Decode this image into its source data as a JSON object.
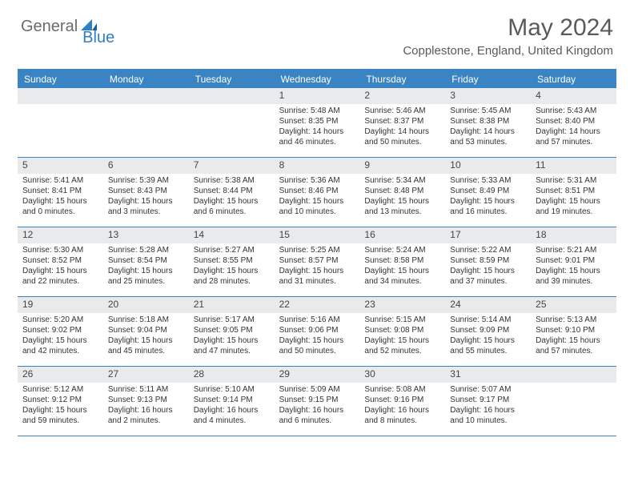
{
  "brand": {
    "text_gray": "General",
    "text_blue": "Blue"
  },
  "title": "May 2024",
  "location": "Copplestone, England, United Kingdom",
  "colors": {
    "header_bg": "#3b84c4",
    "band_bg": "#e9eaec",
    "text": "#333333",
    "brand_gray": "#6b6b6b",
    "brand_blue": "#2f7fc2",
    "page_bg": "#ffffff"
  },
  "dow": [
    "Sunday",
    "Monday",
    "Tuesday",
    "Wednesday",
    "Thursday",
    "Friday",
    "Saturday"
  ],
  "weeks": [
    [
      null,
      null,
      null,
      {
        "n": "1",
        "sr": "5:48 AM",
        "ss": "8:35 PM",
        "dl": "14 hours and 46 minutes."
      },
      {
        "n": "2",
        "sr": "5:46 AM",
        "ss": "8:37 PM",
        "dl": "14 hours and 50 minutes."
      },
      {
        "n": "3",
        "sr": "5:45 AM",
        "ss": "8:38 PM",
        "dl": "14 hours and 53 minutes."
      },
      {
        "n": "4",
        "sr": "5:43 AM",
        "ss": "8:40 PM",
        "dl": "14 hours and 57 minutes."
      }
    ],
    [
      {
        "n": "5",
        "sr": "5:41 AM",
        "ss": "8:41 PM",
        "dl": "15 hours and 0 minutes."
      },
      {
        "n": "6",
        "sr": "5:39 AM",
        "ss": "8:43 PM",
        "dl": "15 hours and 3 minutes."
      },
      {
        "n": "7",
        "sr": "5:38 AM",
        "ss": "8:44 PM",
        "dl": "15 hours and 6 minutes."
      },
      {
        "n": "8",
        "sr": "5:36 AM",
        "ss": "8:46 PM",
        "dl": "15 hours and 10 minutes."
      },
      {
        "n": "9",
        "sr": "5:34 AM",
        "ss": "8:48 PM",
        "dl": "15 hours and 13 minutes."
      },
      {
        "n": "10",
        "sr": "5:33 AM",
        "ss": "8:49 PM",
        "dl": "15 hours and 16 minutes."
      },
      {
        "n": "11",
        "sr": "5:31 AM",
        "ss": "8:51 PM",
        "dl": "15 hours and 19 minutes."
      }
    ],
    [
      {
        "n": "12",
        "sr": "5:30 AM",
        "ss": "8:52 PM",
        "dl": "15 hours and 22 minutes."
      },
      {
        "n": "13",
        "sr": "5:28 AM",
        "ss": "8:54 PM",
        "dl": "15 hours and 25 minutes."
      },
      {
        "n": "14",
        "sr": "5:27 AM",
        "ss": "8:55 PM",
        "dl": "15 hours and 28 minutes."
      },
      {
        "n": "15",
        "sr": "5:25 AM",
        "ss": "8:57 PM",
        "dl": "15 hours and 31 minutes."
      },
      {
        "n": "16",
        "sr": "5:24 AM",
        "ss": "8:58 PM",
        "dl": "15 hours and 34 minutes."
      },
      {
        "n": "17",
        "sr": "5:22 AM",
        "ss": "8:59 PM",
        "dl": "15 hours and 37 minutes."
      },
      {
        "n": "18",
        "sr": "5:21 AM",
        "ss": "9:01 PM",
        "dl": "15 hours and 39 minutes."
      }
    ],
    [
      {
        "n": "19",
        "sr": "5:20 AM",
        "ss": "9:02 PM",
        "dl": "15 hours and 42 minutes."
      },
      {
        "n": "20",
        "sr": "5:18 AM",
        "ss": "9:04 PM",
        "dl": "15 hours and 45 minutes."
      },
      {
        "n": "21",
        "sr": "5:17 AM",
        "ss": "9:05 PM",
        "dl": "15 hours and 47 minutes."
      },
      {
        "n": "22",
        "sr": "5:16 AM",
        "ss": "9:06 PM",
        "dl": "15 hours and 50 minutes."
      },
      {
        "n": "23",
        "sr": "5:15 AM",
        "ss": "9:08 PM",
        "dl": "15 hours and 52 minutes."
      },
      {
        "n": "24",
        "sr": "5:14 AM",
        "ss": "9:09 PM",
        "dl": "15 hours and 55 minutes."
      },
      {
        "n": "25",
        "sr": "5:13 AM",
        "ss": "9:10 PM",
        "dl": "15 hours and 57 minutes."
      }
    ],
    [
      {
        "n": "26",
        "sr": "5:12 AM",
        "ss": "9:12 PM",
        "dl": "15 hours and 59 minutes."
      },
      {
        "n": "27",
        "sr": "5:11 AM",
        "ss": "9:13 PM",
        "dl": "16 hours and 2 minutes."
      },
      {
        "n": "28",
        "sr": "5:10 AM",
        "ss": "9:14 PM",
        "dl": "16 hours and 4 minutes."
      },
      {
        "n": "29",
        "sr": "5:09 AM",
        "ss": "9:15 PM",
        "dl": "16 hours and 6 minutes."
      },
      {
        "n": "30",
        "sr": "5:08 AM",
        "ss": "9:16 PM",
        "dl": "16 hours and 8 minutes."
      },
      {
        "n": "31",
        "sr": "5:07 AM",
        "ss": "9:17 PM",
        "dl": "16 hours and 10 minutes."
      },
      null
    ]
  ],
  "labels": {
    "sunrise_prefix": "Sunrise: ",
    "sunset_prefix": "Sunset: ",
    "daylight_prefix": "Daylight: "
  }
}
